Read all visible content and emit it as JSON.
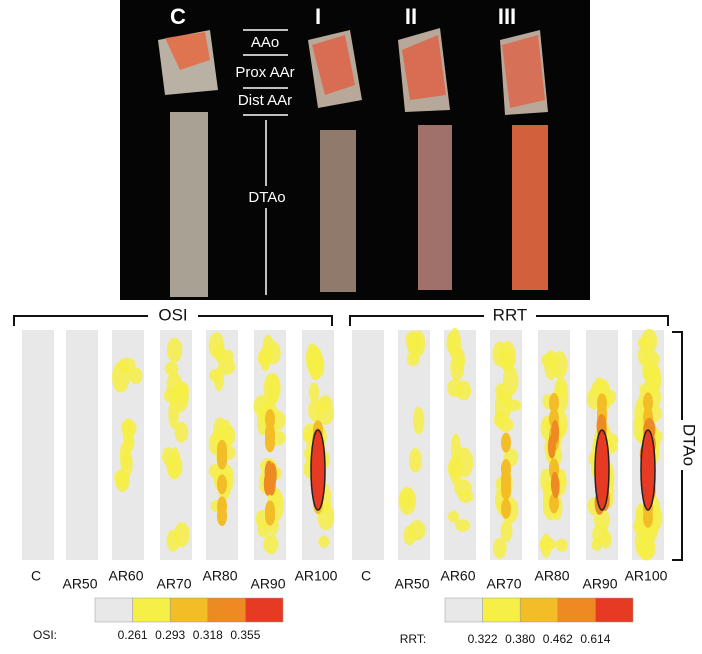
{
  "photo": {
    "panel_labels": [
      "C",
      "I",
      "II",
      "III"
    ],
    "region_labels": [
      "AAo",
      "Prox AAr",
      "Dist AAr",
      "DTAo"
    ]
  },
  "osi": {
    "title": "OSI",
    "strip_labels": [
      "C",
      "AR50",
      "AR60",
      "AR70",
      "AR80",
      "AR90",
      "AR100"
    ],
    "legend_label": "OSI:",
    "legend_ticks": [
      "0.261",
      "0.293",
      "0.318",
      "0.355"
    ]
  },
  "rrt": {
    "title": "RRT",
    "strip_labels": [
      "C",
      "AR50",
      "AR60",
      "AR70",
      "AR80",
      "AR90",
      "AR100"
    ],
    "legend_label": "RRT:",
    "legend_ticks": [
      "0.322",
      "0.380",
      "0.462",
      "0.614"
    ]
  },
  "side_label": "DTAo"
}
